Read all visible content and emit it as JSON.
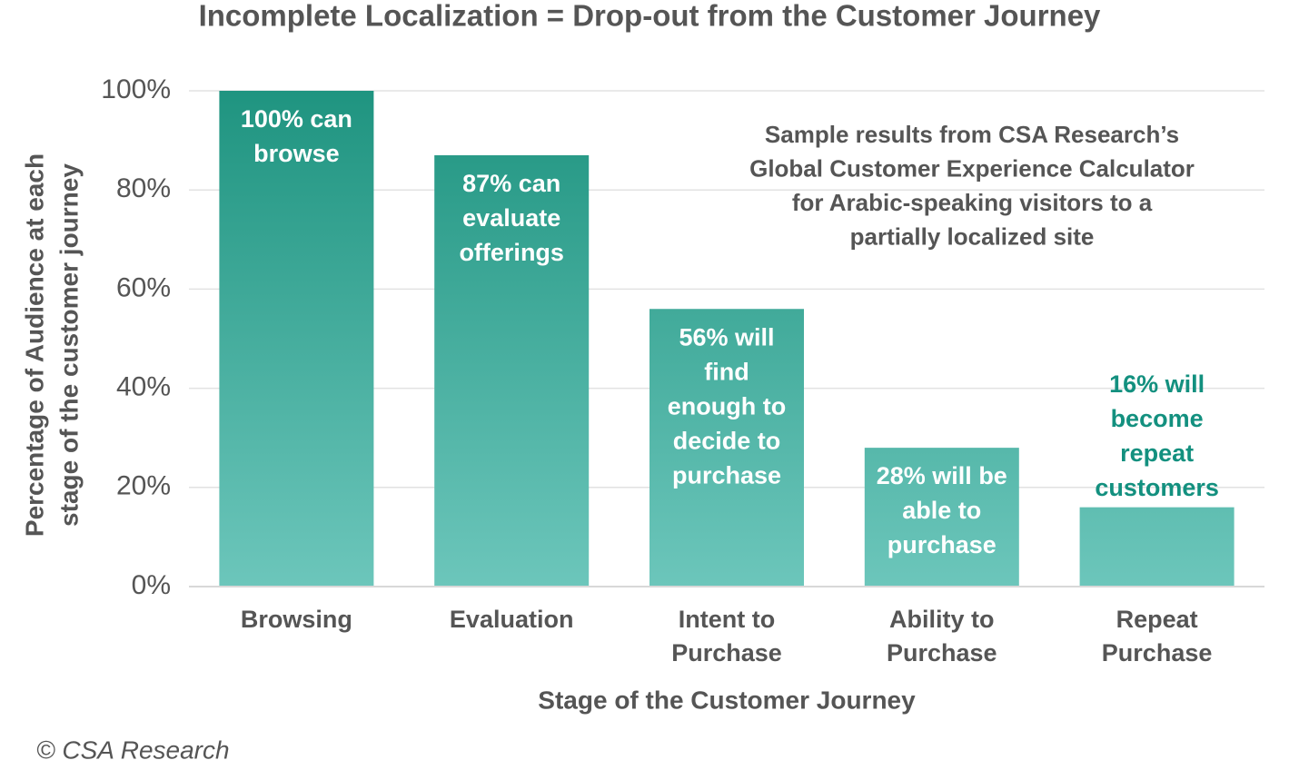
{
  "chart_data": {
    "type": "bar",
    "title": "Incomplete Localization = Drop-out from the Customer Journey",
    "y_label": [
      "Percentage of Audience at each",
      "stage of the customer journey"
    ],
    "x_label": "Stage of the Customer Journey",
    "annotation": [
      "Sample results from CSA Research’s",
      "Global Customer Experience Calculator",
      "for Arabic-speaking visitors to a",
      "partially localized site"
    ],
    "source": "© CSA Research",
    "categories": [
      [
        "Browsing"
      ],
      [
        "Evaluation"
      ],
      [
        "Intent to",
        "Purchase"
      ],
      [
        "Ability to",
        "Purchase"
      ],
      [
        "Repeat",
        "Purchase"
      ]
    ],
    "values": [
      100,
      87,
      56,
      28,
      16
    ],
    "value_labels": [
      [
        "100% can",
        "browse"
      ],
      [
        "87% can",
        "evaluate",
        "offerings"
      ],
      [
        "56% will",
        "find",
        "enough to",
        "decide to",
        "purchase"
      ],
      [
        "28% will be",
        "able to",
        "purchase"
      ],
      [
        "16% will",
        "become",
        "repeat",
        "customers"
      ]
    ],
    "color": "#2a9a87",
    "ylim": [
      0,
      100
    ],
    "yticks": [
      {
        "value": 0,
        "label": "0%"
      },
      {
        "value": 20,
        "label": "20%"
      },
      {
        "value": 40,
        "label": "40%"
      },
      {
        "value": 60,
        "label": "60%"
      },
      {
        "value": 80,
        "label": "80%"
      },
      {
        "value": 100,
        "label": "100%"
      }
    ],
    "grid": true
  }
}
